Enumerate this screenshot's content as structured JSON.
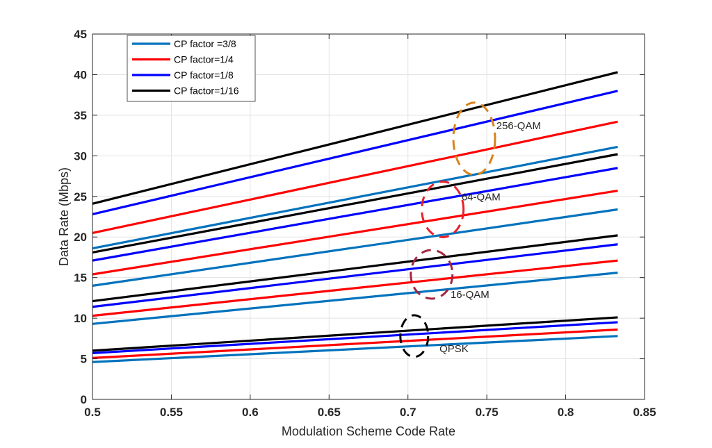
{
  "chart_data": {
    "type": "line",
    "title": "",
    "xlabel": "Modulation Scheme Code Rate",
    "ylabel": "Data Rate (Mbps)",
    "xlim": [
      0.5,
      0.85
    ],
    "ylim": [
      0,
      45
    ],
    "xticks": [
      0.5,
      0.55,
      0.6,
      0.65,
      0.7,
      0.75,
      0.8,
      0.85
    ],
    "xtick_labels": [
      "0.5",
      "0.55",
      "0.6",
      "0.65",
      "0.7",
      "0.75",
      "0.8",
      "0.85"
    ],
    "yticks": [
      0,
      5,
      10,
      15,
      20,
      25,
      30,
      35,
      40,
      45
    ],
    "ytick_labels": [
      "0",
      "5",
      "10",
      "15",
      "20",
      "25",
      "30",
      "35",
      "40",
      "45"
    ],
    "grid": true,
    "legend_position": "top-left",
    "x": [
      0.5,
      0.833
    ],
    "legend": [
      {
        "name": "CP factor =3/8",
        "color": "#0072BD"
      },
      {
        "name": "CP factor=1/4",
        "color": "#FF0000"
      },
      {
        "name": "CP factor=1/8",
        "color": "#0000FF"
      },
      {
        "name": "CP factor=1/16",
        "color": "#000000"
      }
    ],
    "series": [
      {
        "name": "CP factor =3/8",
        "modulation": "QPSK",
        "color": "#0072BD",
        "values": [
          4.6,
          7.8
        ]
      },
      {
        "name": "CP factor=1/4",
        "modulation": "QPSK",
        "color": "#FF0000",
        "values": [
          5.1,
          8.6
        ]
      },
      {
        "name": "CP factor=1/8",
        "modulation": "QPSK",
        "color": "#0000FF",
        "values": [
          5.7,
          9.5
        ]
      },
      {
        "name": "CP factor=1/16",
        "modulation": "QPSK",
        "color": "#000000",
        "values": [
          6.0,
          10.1
        ]
      },
      {
        "name": "CP factor =3/8",
        "modulation": "16-QAM",
        "color": "#0072BD",
        "values": [
          9.3,
          15.6
        ]
      },
      {
        "name": "CP factor=1/4",
        "modulation": "16-QAM",
        "color": "#FF0000",
        "values": [
          10.3,
          17.1
        ]
      },
      {
        "name": "CP factor=1/8",
        "modulation": "16-QAM",
        "color": "#0000FF",
        "values": [
          11.4,
          19.1
        ]
      },
      {
        "name": "CP factor=1/16",
        "modulation": "16-QAM",
        "color": "#000000",
        "values": [
          12.1,
          20.2
        ]
      },
      {
        "name": "CP factor =3/8",
        "modulation": "64-QAM",
        "color": "#0072BD",
        "values": [
          14.0,
          23.4
        ]
      },
      {
        "name": "CP factor=1/4",
        "modulation": "64-QAM",
        "color": "#FF0000",
        "values": [
          15.4,
          25.7
        ]
      },
      {
        "name": "CP factor=1/8",
        "modulation": "64-QAM",
        "color": "#0000FF",
        "values": [
          17.1,
          28.5
        ]
      },
      {
        "name": "CP factor=1/16",
        "modulation": "64-QAM",
        "color": "#000000",
        "values": [
          18.1,
          30.2
        ]
      },
      {
        "name": "CP factor =3/8",
        "modulation": "256-QAM",
        "color": "#0072BD",
        "values": [
          18.6,
          31.1
        ]
      },
      {
        "name": "CP factor=1/4",
        "modulation": "256-QAM",
        "color": "#FF0000",
        "values": [
          20.5,
          34.2
        ]
      },
      {
        "name": "CP factor=1/8",
        "modulation": "256-QAM",
        "color": "#0000FF",
        "values": [
          22.8,
          38.0
        ]
      },
      {
        "name": "CP factor=1/16",
        "modulation": "256-QAM",
        "color": "#000000",
        "values": [
          24.1,
          40.3
        ]
      }
    ],
    "annotations": [
      {
        "text": "256-QAM",
        "x": 0.756,
        "y": 33.3,
        "ellipse": {
          "cx": 0.742,
          "cy": 32.1,
          "color": "#D9821A"
        }
      },
      {
        "text": "64-QAM",
        "x": 0.734,
        "y": 24.5,
        "ellipse": {
          "cx": 0.722,
          "cy": 23.4,
          "color": "#E8212A"
        }
      },
      {
        "text": "16-QAM",
        "x": 0.727,
        "y": 12.5,
        "ellipse": {
          "cx": 0.715,
          "cy": 15.4,
          "color": "#A3263F"
        }
      },
      {
        "text": "QPSK",
        "x": 0.72,
        "y": 5.8,
        "ellipse": {
          "cx": 0.704,
          "cy": 7.8,
          "color": "#000000"
        }
      }
    ]
  }
}
